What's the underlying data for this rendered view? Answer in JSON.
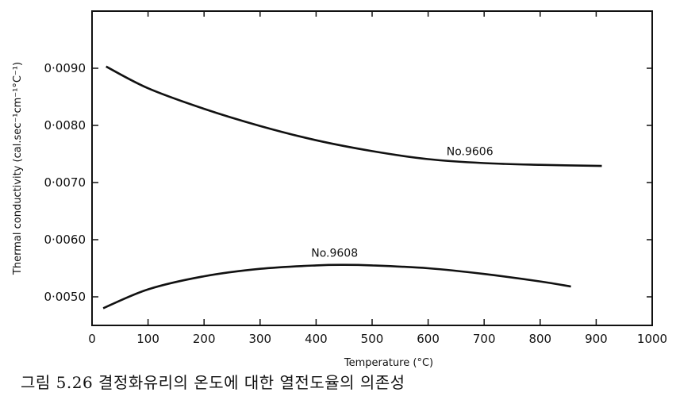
{
  "chart_data": {
    "type": "line",
    "xlabel": "Temperature (°C)",
    "ylabel": "Thermal conductivity (cal.sec⁻¹cm⁻¹°C⁻¹)",
    "xlim": [
      0,
      1000
    ],
    "ylim": [
      0.0045,
      0.01
    ],
    "x_ticks": [
      0,
      100,
      200,
      300,
      400,
      500,
      600,
      700,
      800,
      900,
      1000
    ],
    "x_tick_labels": [
      "0",
      "100",
      "200",
      "300",
      "400",
      "500",
      "600",
      "700",
      "800",
      "900",
      "1000"
    ],
    "y_ticks": [
      0.005,
      0.006,
      0.007,
      0.008,
      0.009
    ],
    "y_tick_labels": [
      "0·0050",
      "0·0060",
      "0·0070",
      "0·0080",
      "0·0090"
    ],
    "grid": false,
    "series": [
      {
        "name": "No.9606",
        "x": [
          25,
          100,
          200,
          300,
          400,
          500,
          600,
          700,
          800,
          910
        ],
        "y": [
          0.00903,
          0.00865,
          0.00829,
          0.00799,
          0.00774,
          0.00755,
          0.00741,
          0.00734,
          0.00731,
          0.00729
        ]
      },
      {
        "name": "No.9608",
        "x": [
          20,
          100,
          200,
          300,
          400,
          450,
          500,
          600,
          700,
          800,
          855
        ],
        "y": [
          0.0048,
          0.00513,
          0.00536,
          0.00549,
          0.00555,
          0.00556,
          0.00555,
          0.0055,
          0.0054,
          0.00527,
          0.00518
        ]
      }
    ]
  },
  "caption": "그림 5.26  결정화유리의 온도에 대한 열전도율의 의존성"
}
